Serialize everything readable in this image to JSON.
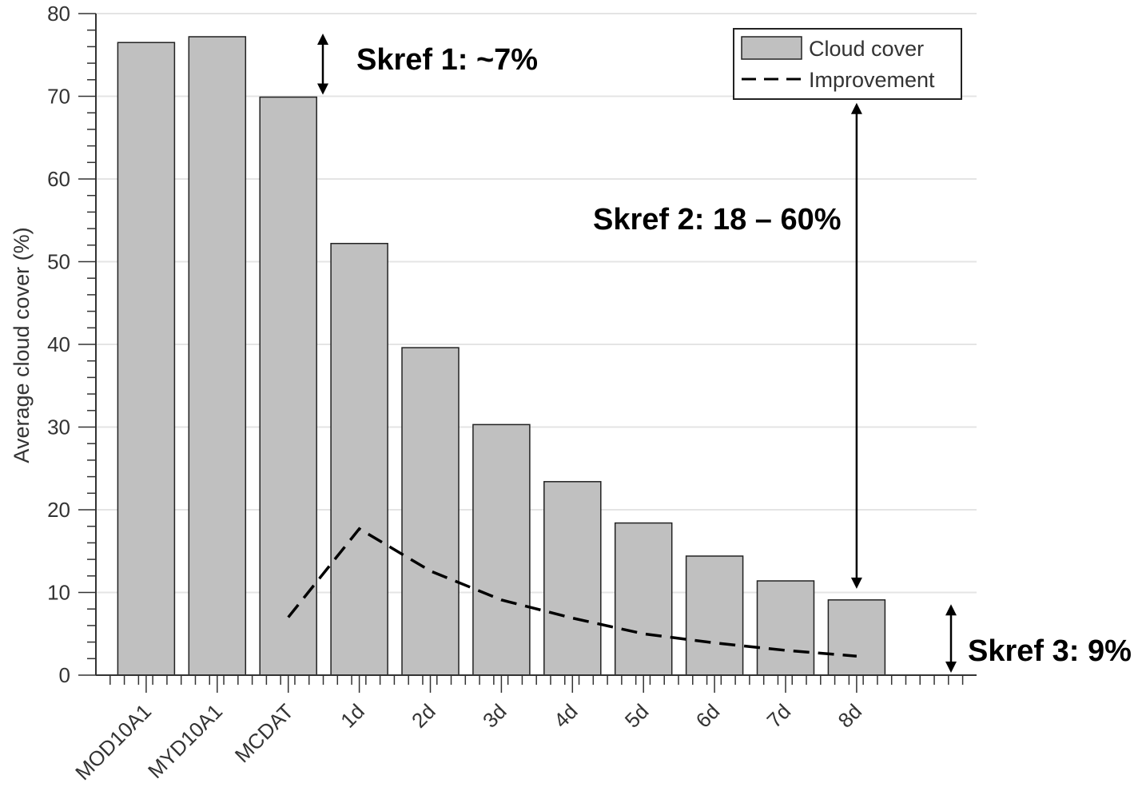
{
  "chart_data": {
    "type": "bar",
    "title": "",
    "xlabel": "",
    "ylabel": "Average cloud cover (%)",
    "ylim": [
      0,
      80
    ],
    "yticks": [
      0,
      10,
      20,
      30,
      40,
      50,
      60,
      70,
      80
    ],
    "grid": "horizontal",
    "legend_position": "top-right",
    "categories": [
      "MOD10A1",
      "MYD10A1",
      "MCDAT",
      "1d",
      "2d",
      "3d",
      "4d",
      "5d",
      "6d",
      "7d",
      "8d"
    ],
    "series": [
      {
        "name": "Cloud cover",
        "style": "bar",
        "color": "#c0c0c0",
        "values": [
          76.5,
          77.2,
          69.9,
          52.2,
          39.6,
          30.3,
          23.4,
          18.4,
          14.4,
          11.4,
          9.1
        ]
      },
      {
        "name": "Improvement",
        "style": "dashed-line",
        "color": "#000000",
        "x": [
          "MCDAT",
          "1d",
          "2d",
          "3d",
          "4d",
          "5d",
          "6d",
          "7d",
          "8d"
        ],
        "values": [
          7.0,
          17.7,
          12.6,
          9.1,
          6.9,
          5.0,
          3.9,
          3.0,
          2.3
        ]
      }
    ],
    "annotations": [
      {
        "label": "Skref 1: ~7%",
        "arrow_from": 70,
        "arrow_to": 77.2,
        "at": "MCDAT"
      },
      {
        "label": "Skref 2: 18 – 60%",
        "arrow_from": 9.1,
        "arrow_to": 69.2,
        "at": "8d"
      },
      {
        "label": "Skref 3: 9%",
        "arrow_from": 0,
        "arrow_to": 8,
        "at": "right"
      }
    ]
  }
}
